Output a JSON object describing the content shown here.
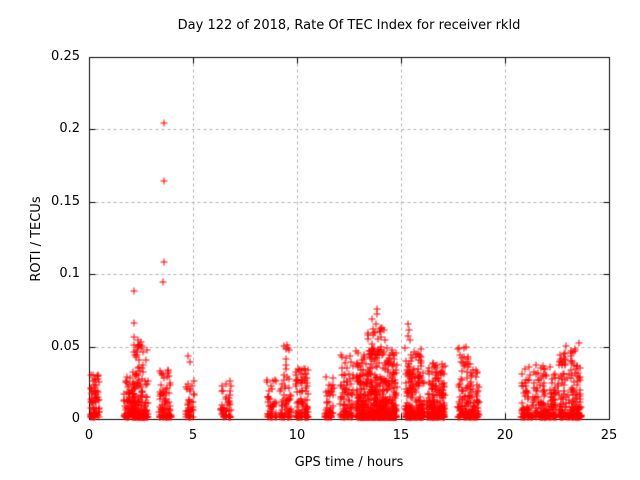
{
  "window": {
    "background": "#ffffff"
  },
  "chart_data": {
    "type": "scatter",
    "title": "Day 122 of 2018, Rate Of TEC Index for receiver rkld",
    "xlabel": "GPS time / hours",
    "ylabel": "ROTI / TECUs",
    "xlim": [
      0,
      25
    ],
    "ylim": [
      0,
      0.25
    ],
    "xticks": [
      0,
      5,
      10,
      15,
      20,
      25
    ],
    "yticks": [
      0,
      0.05,
      0.1,
      0.15,
      0.2,
      0.25
    ],
    "xtick_labels": [
      "0",
      "5",
      "10",
      "15",
      "20",
      "25"
    ],
    "ytick_labels": [
      "0",
      "0.05",
      "0.1",
      "0.15",
      "0.2",
      "0.25"
    ],
    "grid": {
      "shown": true,
      "style": "dashed",
      "color": "#b0b0b0"
    },
    "frame_color": "#000000",
    "marker": {
      "shape": "plus",
      "color": "#ff0000",
      "size": 7
    },
    "legend": {
      "shown": false
    },
    "outlier_points": [
      [
        3.58,
        0.205
      ],
      [
        3.58,
        0.165
      ],
      [
        3.57,
        0.109
      ],
      [
        3.53,
        0.095
      ],
      [
        2.12,
        0.089
      ],
      [
        2.12,
        0.067
      ],
      [
        2.12,
        0.057
      ],
      [
        2.1,
        0.052
      ],
      [
        2.12,
        0.047
      ],
      [
        2.3,
        0.055
      ],
      [
        2.36,
        0.052
      ],
      [
        2.44,
        0.054
      ],
      [
        2.5,
        0.051
      ],
      [
        4.72,
        0.044
      ],
      [
        4.79,
        0.04
      ],
      [
        9.35,
        0.051
      ],
      [
        9.4,
        0.049
      ],
      [
        9.45,
        0.052
      ],
      [
        9.5,
        0.05
      ],
      [
        9.55,
        0.048
      ],
      [
        9.42,
        0.042
      ],
      [
        9.4,
        0.038
      ],
      [
        9.44,
        0.035
      ],
      [
        13.8,
        0.077
      ],
      [
        13.78,
        0.073
      ],
      [
        13.75,
        0.066
      ],
      [
        13.55,
        0.07
      ],
      [
        13.6,
        0.063
      ],
      [
        13.95,
        0.061
      ],
      [
        15.3,
        0.066
      ],
      [
        15.33,
        0.062
      ],
      [
        15.28,
        0.058
      ],
      [
        15.4,
        0.055
      ],
      [
        22.87,
        0.051
      ],
      [
        23.3,
        0.049
      ],
      [
        23.5,
        0.053
      ]
    ],
    "clusters": [
      {
        "t": [
          0.02,
          0.45
        ],
        "v": [
          0.002,
          0.032
        ],
        "n": 70,
        "bias": 1.8
      },
      {
        "t": [
          1.62,
          2.1
        ],
        "v": [
          0.002,
          0.03
        ],
        "n": 70,
        "bias": 2.2
      },
      {
        "t": [
          2.05,
          2.78
        ],
        "v": [
          0.002,
          0.052
        ],
        "n": 170,
        "bias": 3.0
      },
      {
        "t": [
          3.32,
          3.9
        ],
        "v": [
          0.002,
          0.036
        ],
        "n": 80,
        "bias": 2.4
      },
      {
        "t": [
          4.62,
          4.98
        ],
        "v": [
          0.002,
          0.028
        ],
        "n": 40,
        "bias": 2.0
      },
      {
        "t": [
          6.3,
          6.78
        ],
        "v": [
          0.002,
          0.028
        ],
        "n": 45,
        "bias": 1.8
      },
      {
        "t": [
          8.5,
          9.0
        ],
        "v": [
          0.002,
          0.028
        ],
        "n": 45,
        "bias": 2.0
      },
      {
        "t": [
          9.15,
          9.7
        ],
        "v": [
          0.002,
          0.032
        ],
        "n": 55,
        "bias": 2.2
      },
      {
        "t": [
          9.9,
          10.5
        ],
        "v": [
          0.002,
          0.036
        ],
        "n": 95,
        "bias": 2.6
      },
      {
        "t": [
          11.3,
          11.75
        ],
        "v": [
          0.002,
          0.03
        ],
        "n": 50,
        "bias": 2.2
      },
      {
        "t": [
          12.0,
          12.65
        ],
        "v": [
          0.002,
          0.046
        ],
        "n": 85,
        "bias": 2.6
      },
      {
        "t": [
          12.8,
          14.75
        ],
        "v": [
          0.002,
          0.05
        ],
        "n": 620,
        "bias": 3.2
      },
      {
        "t": [
          13.35,
          14.25
        ],
        "v": [
          0.045,
          0.066
        ],
        "n": 30,
        "bias": 1.5
      },
      {
        "t": [
          15.15,
          16.05
        ],
        "v": [
          0.002,
          0.05
        ],
        "n": 230,
        "bias": 3.0
      },
      {
        "t": [
          16.2,
          17.05
        ],
        "v": [
          0.002,
          0.04
        ],
        "n": 210,
        "bias": 3.0
      },
      {
        "t": [
          17.7,
          18.25
        ],
        "v": [
          0.002,
          0.052
        ],
        "n": 95,
        "bias": 2.8
      },
      {
        "t": [
          18.25,
          18.7
        ],
        "v": [
          0.002,
          0.035
        ],
        "n": 70,
        "bias": 2.5
      },
      {
        "t": [
          20.7,
          21.5
        ],
        "v": [
          0.002,
          0.038
        ],
        "n": 90,
        "bias": 2.8
      },
      {
        "t": [
          21.55,
          22.4
        ],
        "v": [
          0.002,
          0.038
        ],
        "n": 130,
        "bias": 2.6
      },
      {
        "t": [
          22.5,
          23.6
        ],
        "v": [
          0.002,
          0.05
        ],
        "n": 190,
        "bias": 2.7
      }
    ]
  }
}
